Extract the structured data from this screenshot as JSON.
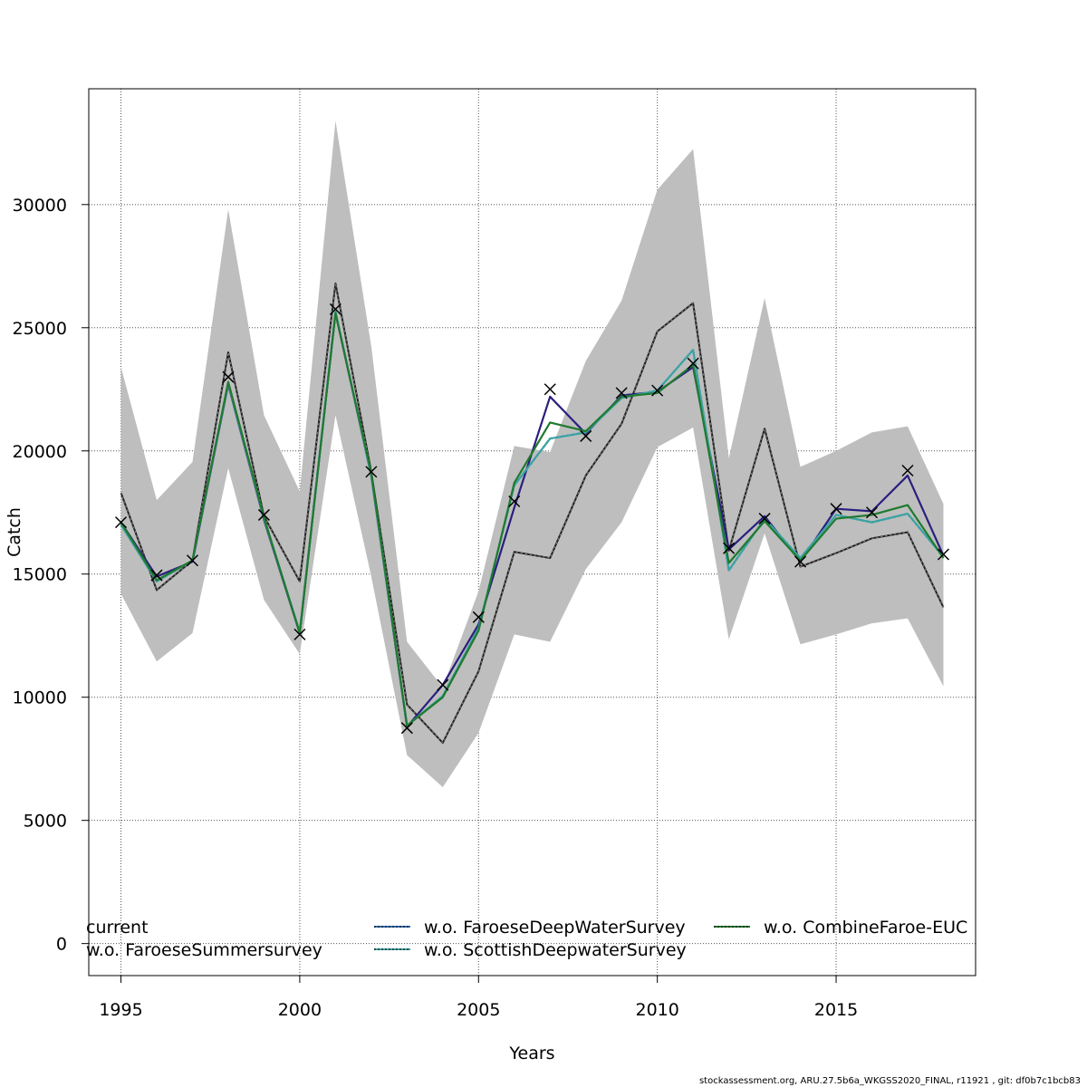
{
  "chart_data": {
    "type": "line",
    "xlabel": "Years",
    "ylabel": "Catch",
    "xlim": [
      1994.1,
      2018.9
    ],
    "ylim": [
      -1300,
      34700
    ],
    "grid": true,
    "x_ticks": [
      1995,
      2000,
      2005,
      2010,
      2015
    ],
    "y_ticks": [
      0,
      5000,
      10000,
      15000,
      20000,
      25000,
      30000
    ],
    "x": [
      1995,
      1996,
      1997,
      1998,
      1999,
      2000,
      2001,
      2002,
      2003,
      2004,
      2005,
      2006,
      2007,
      2008,
      2009,
      2010,
      2011,
      2012,
      2013,
      2014,
      2015,
      2016,
      2017,
      2018
    ],
    "confidence_band": {
      "color": "#bebebe",
      "lower": [
        14200,
        11450,
        12600,
        19300,
        13950,
        11750,
        21450,
        14900,
        7650,
        6350,
        8550,
        12550,
        12250,
        15200,
        17100,
        20150,
        20950,
        12350,
        16650,
        12150,
        12550,
        13000,
        13200,
        10450
      ],
      "upper": [
        23400,
        18000,
        19550,
        29800,
        21450,
        18350,
        33400,
        24250,
        12250,
        10400,
        14300,
        20200,
        19950,
        23650,
        26100,
        30600,
        32250,
        19700,
        26200,
        19350,
        20000,
        20750,
        21000,
        17850
      ]
    },
    "observed": {
      "marker": "x",
      "values": [
        17100,
        14950,
        15550,
        23000,
        17400,
        12550,
        25750,
        19150,
        8750,
        10500,
        13250,
        17950,
        22500,
        20600,
        22350,
        22450,
        23550,
        16050,
        17250,
        15500,
        17650,
        17500,
        19200,
        15800
      ]
    },
    "series": [
      {
        "name": "current",
        "color": "#000000",
        "dashed": false,
        "values": [
          18300,
          14350,
          15550,
          24000,
          17350,
          14700,
          26800,
          19150,
          9700,
          8150,
          11050,
          15900,
          15650,
          19000,
          21100,
          24850,
          26000,
          15950,
          20900,
          15300,
          15850,
          16450,
          16700,
          13650
        ]
      },
      {
        "name": "w.o. FaroeseSummersurvey",
        "color": "#2a1f7e",
        "dashed": false,
        "values": [
          17100,
          14900,
          15500,
          22700,
          17200,
          12600,
          25600,
          19000,
          8800,
          10500,
          12950,
          17700,
          22200,
          20700,
          22250,
          22400,
          23400,
          16000,
          17350,
          15500,
          17650,
          17550,
          19000,
          15750
        ]
      },
      {
        "name": "w.o. FaroeseDeepWaterSurvey",
        "color": "#2b6cb0",
        "dashed": true,
        "values": [
          17000,
          14700,
          15550,
          22750,
          17250,
          12650,
          25650,
          19000,
          8850,
          10050,
          12800,
          18600,
          20500,
          20750,
          22150,
          22450,
          24100,
          15150,
          17250,
          15650,
          17400,
          17100,
          17450,
          15700
        ]
      },
      {
        "name": "w.o. ScottishDeepwaterSurvey",
        "color": "#3ba3a3",
        "dashed": false,
        "values": [
          17000,
          14700,
          15550,
          22750,
          17250,
          12650,
          25650,
          19000,
          8850,
          10050,
          12800,
          18600,
          20500,
          20750,
          22150,
          22450,
          24100,
          15150,
          17250,
          15650,
          17400,
          17100,
          17450,
          15700
        ]
      },
      {
        "name": "w.o. CombineFaroe-EUC",
        "color": "#1f7a2e",
        "dashed": false,
        "values": [
          17100,
          14750,
          15550,
          22800,
          17300,
          12600,
          25600,
          19100,
          8850,
          10000,
          12700,
          18700,
          21150,
          20800,
          22200,
          22350,
          23500,
          15450,
          17150,
          15550,
          17250,
          17400,
          17800,
          15650
        ]
      }
    ]
  },
  "footer": "stockassessment.org, ARU.27.5b6a_WKGSS2020_FINAL, r11921 , git: df0b7c1bcb83"
}
